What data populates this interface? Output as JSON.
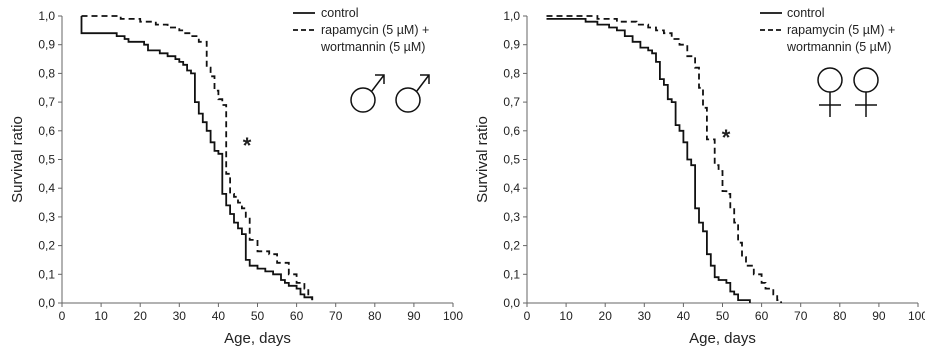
{
  "chart_data": [
    {
      "type": "line",
      "panel": "male",
      "xlabel": "Age, days",
      "ylabel": "Survival ratio",
      "xlim": [
        0,
        100
      ],
      "ylim": [
        0,
        1.0
      ],
      "x_ticks": [
        "0",
        "10",
        "20",
        "30",
        "40",
        "50",
        "60",
        "70",
        "80",
        "90",
        "100"
      ],
      "y_ticks": [
        "0,0",
        "0,1",
        "0,2",
        "0,3",
        "0,4",
        "0,5",
        "0,6",
        "0,7",
        "0,8",
        "0,9",
        "1,0"
      ],
      "legend": [
        "control",
        "rapamycin (5 µM) +",
        "wortmannin (5 µM)"
      ],
      "legend_position": "top-right",
      "annotation": "*",
      "sex_symbol": "male",
      "series": [
        {
          "name": "control",
          "style": "solid",
          "points": [
            [
              5,
              1.0
            ],
            [
              5,
              0.94
            ],
            [
              12,
              0.94
            ],
            [
              14,
              0.93
            ],
            [
              16,
              0.92
            ],
            [
              17,
              0.91
            ],
            [
              21,
              0.9
            ],
            [
              22,
              0.88
            ],
            [
              25,
              0.87
            ],
            [
              27,
              0.86
            ],
            [
              29,
              0.85
            ],
            [
              30,
              0.84
            ],
            [
              31,
              0.83
            ],
            [
              32,
              0.81
            ],
            [
              33,
              0.8
            ],
            [
              34,
              0.79
            ],
            [
              34,
              0.7
            ],
            [
              35,
              0.66
            ],
            [
              36,
              0.63
            ],
            [
              37,
              0.6
            ],
            [
              38,
              0.56
            ],
            [
              39,
              0.53
            ],
            [
              40,
              0.52
            ],
            [
              41,
              0.41
            ],
            [
              41,
              0.38
            ],
            [
              42,
              0.34
            ],
            [
              43,
              0.31
            ],
            [
              44,
              0.28
            ],
            [
              45,
              0.26
            ],
            [
              46,
              0.24
            ],
            [
              47,
              0.2
            ],
            [
              47,
              0.15
            ],
            [
              48,
              0.13
            ],
            [
              50,
              0.12
            ],
            [
              52,
              0.11
            ],
            [
              54,
              0.1
            ],
            [
              56,
              0.08
            ],
            [
              57,
              0.07
            ],
            [
              58,
              0.06
            ],
            [
              60,
              0.05
            ],
            [
              61,
              0.03
            ],
            [
              62,
              0.02
            ],
            [
              63,
              0.02
            ],
            [
              64,
              0.01
            ]
          ]
        },
        {
          "name": "rapamycin (5 µM) + wortmannin (5 µM)",
          "style": "dashed",
          "points": [
            [
              5,
              1.0
            ],
            [
              13,
              1.0
            ],
            [
              15,
              0.99
            ],
            [
              17,
              0.99
            ],
            [
              20,
              0.98
            ],
            [
              24,
              0.97
            ],
            [
              27,
              0.96
            ],
            [
              30,
              0.95
            ],
            [
              31,
              0.94
            ],
            [
              33,
              0.93
            ],
            [
              35,
              0.91
            ],
            [
              37,
              0.89
            ],
            [
              37,
              0.82
            ],
            [
              38,
              0.79
            ],
            [
              39,
              0.74
            ],
            [
              40,
              0.71
            ],
            [
              41,
              0.69
            ],
            [
              42,
              0.62
            ],
            [
              42,
              0.58
            ],
            [
              42,
              0.45
            ],
            [
              43,
              0.38
            ],
            [
              44,
              0.37
            ],
            [
              45,
              0.35
            ],
            [
              46,
              0.33
            ],
            [
              47,
              0.3
            ],
            [
              48,
              0.25
            ],
            [
              48,
              0.22
            ],
            [
              50,
              0.18
            ],
            [
              53,
              0.17
            ],
            [
              55,
              0.14
            ],
            [
              58,
              0.1
            ],
            [
              60,
              0.07
            ],
            [
              62,
              0.05
            ],
            [
              63,
              0.02
            ],
            [
              64,
              0.01
            ]
          ]
        }
      ]
    },
    {
      "type": "line",
      "panel": "female",
      "xlabel": "Age, days",
      "ylabel": "Survival ratio",
      "xlim": [
        0,
        100
      ],
      "ylim": [
        0,
        1.0
      ],
      "x_ticks": [
        "0",
        "10",
        "20",
        "30",
        "40",
        "50",
        "60",
        "70",
        "80",
        "90",
        "100"
      ],
      "y_ticks": [
        "0,0",
        "0,1",
        "0,2",
        "0,3",
        "0,4",
        "0,5",
        "0,6",
        "0,7",
        "0,8",
        "0,9",
        "1,0"
      ],
      "legend": [
        "control",
        "rapamycin (5 µM) +",
        "wortmannin (5 µM)"
      ],
      "legend_position": "top-right",
      "annotation": "*",
      "sex_symbol": "female",
      "series": [
        {
          "name": "control",
          "style": "solid",
          "points": [
            [
              5,
              0.99
            ],
            [
              15,
              0.98
            ],
            [
              18,
              0.97
            ],
            [
              21,
              0.96
            ],
            [
              23,
              0.95
            ],
            [
              25,
              0.93
            ],
            [
              27,
              0.91
            ],
            [
              29,
              0.89
            ],
            [
              31,
              0.88
            ],
            [
              32,
              0.87
            ],
            [
              33,
              0.84
            ],
            [
              34,
              0.78
            ],
            [
              35,
              0.76
            ],
            [
              36,
              0.71
            ],
            [
              37,
              0.7
            ],
            [
              38,
              0.62
            ],
            [
              39,
              0.6
            ],
            [
              40,
              0.56
            ],
            [
              41,
              0.5
            ],
            [
              42,
              0.48
            ],
            [
              43,
              0.42
            ],
            [
              43,
              0.33
            ],
            [
              44,
              0.28
            ],
            [
              45,
              0.25
            ],
            [
              46,
              0.17
            ],
            [
              47,
              0.13
            ],
            [
              48,
              0.09
            ],
            [
              49,
              0.08
            ],
            [
              51,
              0.07
            ],
            [
              52,
              0.04
            ],
            [
              53,
              0.03
            ],
            [
              54,
              0.01
            ],
            [
              57,
              0.0
            ]
          ]
        },
        {
          "name": "rapamycin (5 µM) + wortmannin (5 µM)",
          "style": "dashed",
          "points": [
            [
              5,
              1.0
            ],
            [
              18,
              0.99
            ],
            [
              23,
              0.98
            ],
            [
              28,
              0.97
            ],
            [
              31,
              0.96
            ],
            [
              33,
              0.95
            ],
            [
              35,
              0.94
            ],
            [
              37,
              0.92
            ],
            [
              39,
              0.9
            ],
            [
              41,
              0.86
            ],
            [
              43,
              0.82
            ],
            [
              44,
              0.75
            ],
            [
              45,
              0.68
            ],
            [
              46,
              0.57
            ],
            [
              48,
              0.57
            ],
            [
              48,
              0.48
            ],
            [
              49,
              0.46
            ],
            [
              50,
              0.39
            ],
            [
              51,
              0.38
            ],
            [
              52,
              0.33
            ],
            [
              53,
              0.28
            ],
            [
              54,
              0.21
            ],
            [
              55,
              0.16
            ],
            [
              56,
              0.13
            ],
            [
              58,
              0.1
            ],
            [
              60,
              0.07
            ],
            [
              61,
              0.05
            ],
            [
              63,
              0.03
            ],
            [
              64,
              0.01
            ],
            [
              65,
              0.0
            ]
          ]
        }
      ]
    }
  ]
}
